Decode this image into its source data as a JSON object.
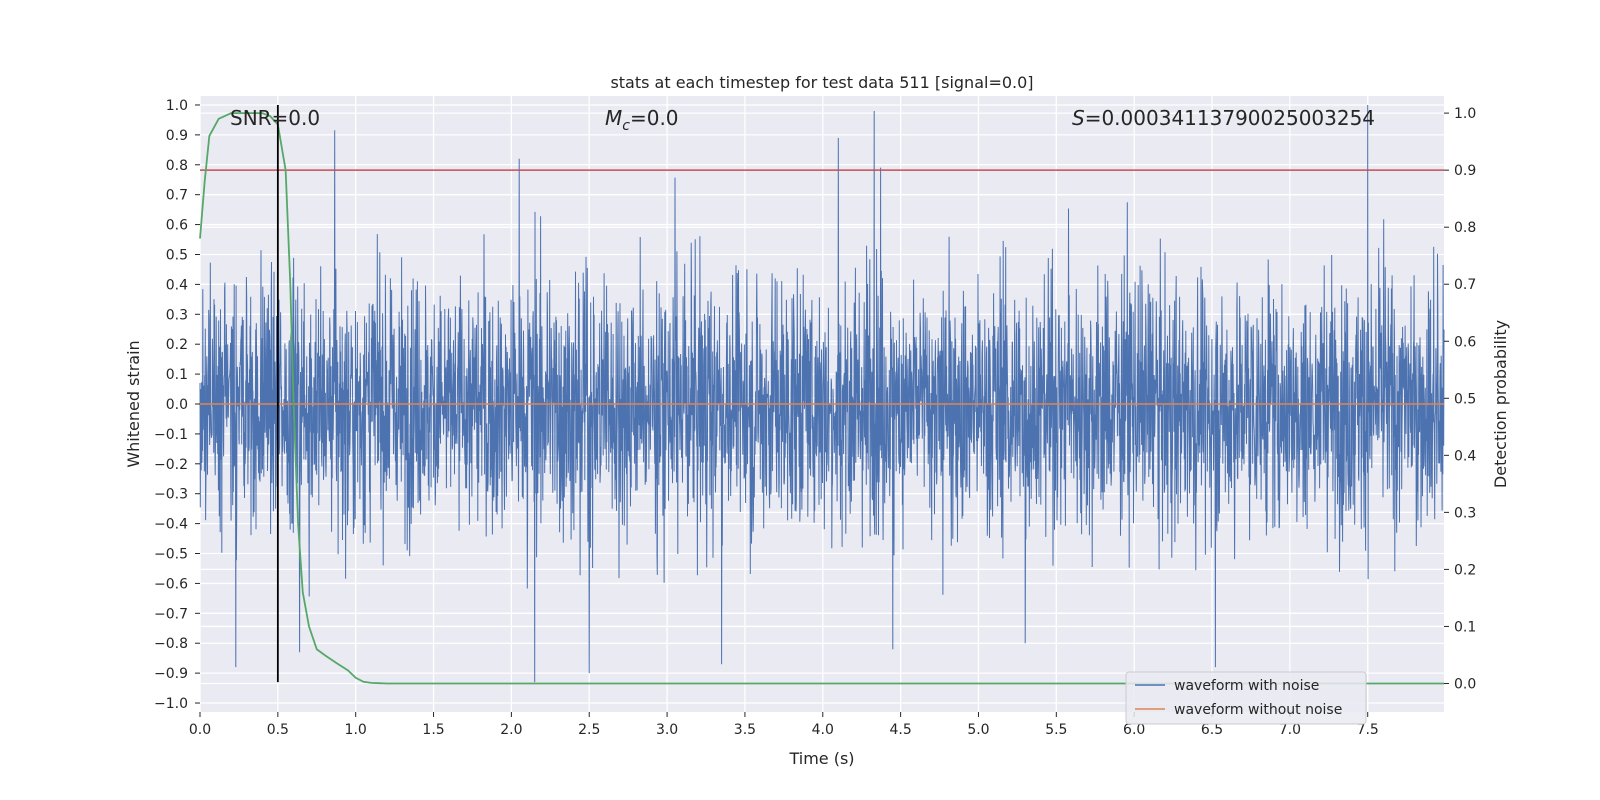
{
  "chart_data": {
    "type": "line",
    "title": "stats at each timestep for test data 511 [signal=0.0]",
    "xlabel": "Time (s)",
    "ylabel": "Whitened strain",
    "y2label": "Detection probability",
    "xlim": [
      0.0,
      7.99
    ],
    "ylim": [
      -1.03,
      1.03
    ],
    "y2lim": [
      -0.05,
      1.03
    ],
    "grid": true,
    "legend_position": "lower-right",
    "x_ticks": [
      "0.0",
      "0.5",
      "1.0",
      "1.5",
      "2.0",
      "2.5",
      "3.0",
      "3.5",
      "4.0",
      "4.5",
      "5.0",
      "5.5",
      "6.0",
      "6.5",
      "7.0",
      "7.5"
    ],
    "y_ticks": [
      "1.0",
      "0.9",
      "0.8",
      "0.7",
      "0.6",
      "0.5",
      "0.4",
      "0.3",
      "0.2",
      "0.1",
      "0.0",
      "−0.1",
      "−0.2",
      "−0.3",
      "−0.4",
      "−0.5",
      "−0.6",
      "−0.7",
      "−0.8",
      "−0.9",
      "−1.0"
    ],
    "y2_ticks": [
      "1.0",
      "0.9",
      "0.8",
      "0.7",
      "0.6",
      "0.5",
      "0.4",
      "0.3",
      "0.2",
      "0.1",
      "0.0"
    ],
    "annotations": {
      "snr": "SNR=0.0",
      "mc_symbol": "M",
      "mc_sub": "c",
      "mc_value": "=0.0",
      "s_symbol": "S",
      "s_value": "=0.00034113790025003254"
    },
    "series": [
      {
        "name": "waveform with noise",
        "color": "#4c72b0",
        "axis": "left",
        "typical_amplitude": 0.35,
        "max": 1.0,
        "min": -0.93,
        "notable_peaks": [
          [
            0.64,
            0.91
          ],
          [
            2.05,
            0.82
          ],
          [
            4.1,
            0.89
          ],
          [
            4.33,
            0.98
          ],
          [
            7.5,
            1.0
          ]
        ],
        "notable_troughs": [
          [
            0.64,
            -0.83
          ],
          [
            2.15,
            -0.93
          ],
          [
            2.5,
            -0.9
          ],
          [
            3.35,
            -0.87
          ],
          [
            4.45,
            -0.82
          ],
          [
            5.3,
            -0.8
          ]
        ]
      },
      {
        "name": "waveform without noise",
        "color": "#dd8452",
        "axis": "left",
        "x": [
          0.0,
          7.99
        ],
        "y": [
          0.0,
          0.0
        ]
      },
      {
        "color": "#55a868",
        "axis": "right",
        "x": [
          0.0,
          0.03,
          0.06,
          0.12,
          0.2,
          0.3,
          0.4,
          0.45,
          0.5,
          0.55,
          0.58,
          0.6,
          0.63,
          0.66,
          0.7,
          0.75,
          0.8,
          0.87,
          0.95,
          1.0,
          1.05,
          1.1,
          1.2,
          1.5,
          2.0,
          7.99
        ],
        "y": [
          0.78,
          0.88,
          0.96,
          0.99,
          1.0,
          1.0,
          1.0,
          0.995,
          0.98,
          0.9,
          0.7,
          0.5,
          0.28,
          0.16,
          0.1,
          0.06,
          0.05,
          0.037,
          0.023,
          0.01,
          0.003,
          0.001,
          0.0,
          0.0,
          0.0,
          0.0
        ]
      }
    ],
    "threshold_line": {
      "axis": "right",
      "y": 0.9,
      "color": "#c44e52"
    },
    "marker_line": {
      "x": 0.5,
      "y_from": -0.93,
      "y_to": 1.0,
      "color": "#000000"
    }
  }
}
